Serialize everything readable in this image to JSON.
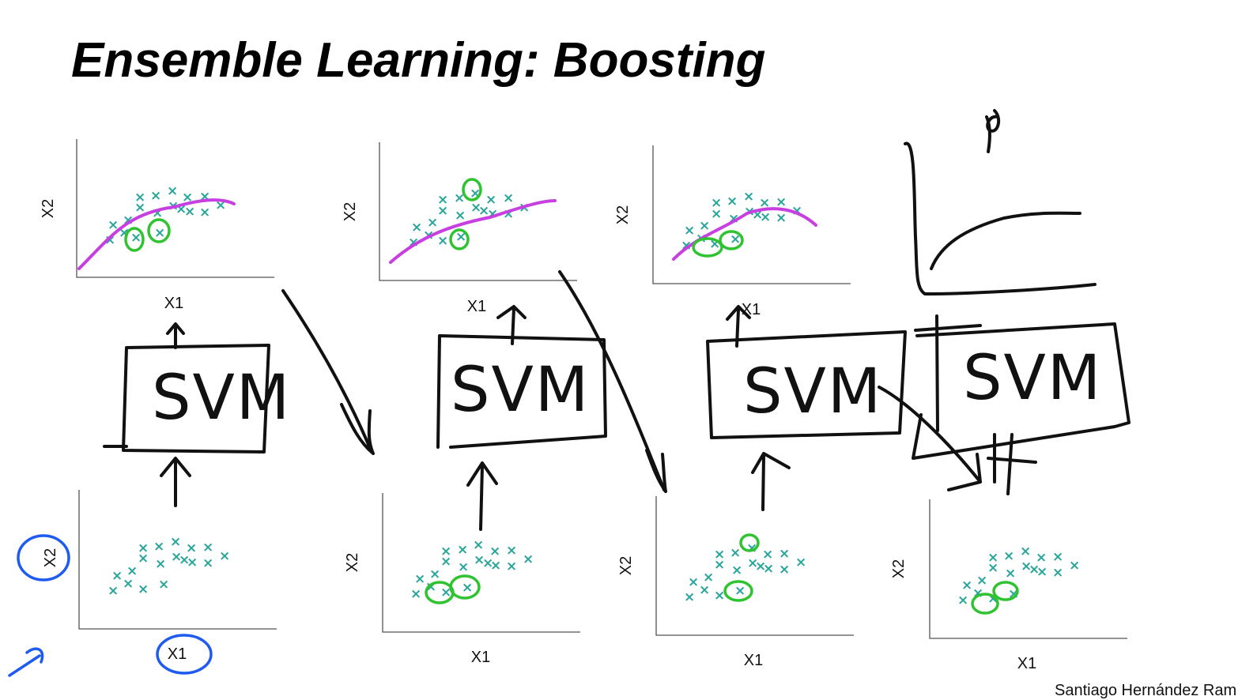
{
  "title": "Ensemble Learning: Boosting",
  "axes": {
    "x_label": "X1",
    "y_label": "X2"
  },
  "model_label": "SVM",
  "credit": "Santiago Hernández Ram",
  "colors": {
    "points": "#2aa59b",
    "highlight": "#2fc231",
    "boundary": "#c73fe0",
    "annotation": "#1f5bf0",
    "ink": "#111111"
  }
}
